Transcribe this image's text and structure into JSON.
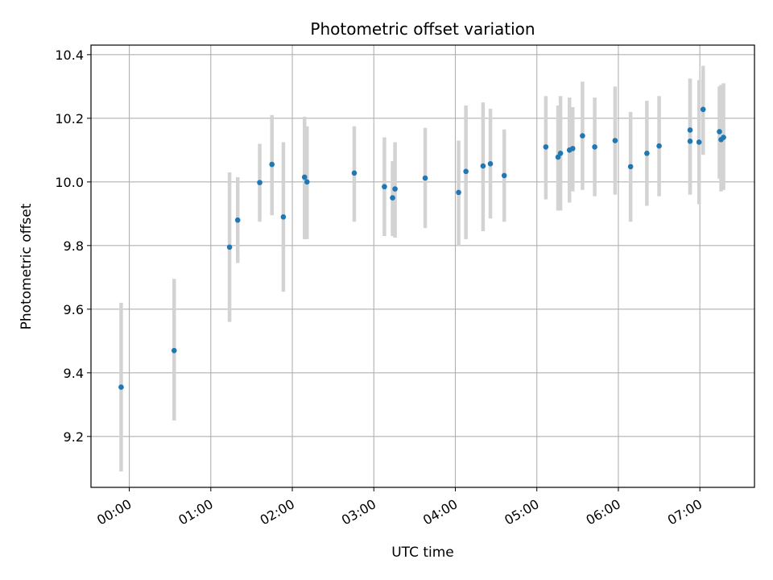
{
  "chart_data": {
    "type": "scatter",
    "title": "Photometric offset variation",
    "xlabel": "UTC time",
    "ylabel": "Photometric offset",
    "x_unit": "hours",
    "xlim": [
      -0.47,
      7.67
    ],
    "ylim": [
      9.04,
      10.43
    ],
    "grid": true,
    "x_ticks": [
      {
        "value": 0,
        "label": "00:00"
      },
      {
        "value": 1,
        "label": "01:00"
      },
      {
        "value": 2,
        "label": "02:00"
      },
      {
        "value": 3,
        "label": "03:00"
      },
      {
        "value": 4,
        "label": "04:00"
      },
      {
        "value": 5,
        "label": "05:00"
      },
      {
        "value": 6,
        "label": "06:00"
      },
      {
        "value": 7,
        "label": "07:00"
      }
    ],
    "y_ticks": [
      {
        "value": 9.2,
        "label": "9.2"
      },
      {
        "value": 9.4,
        "label": "9.4"
      },
      {
        "value": 9.6,
        "label": "9.6"
      },
      {
        "value": 9.8,
        "label": "9.8"
      },
      {
        "value": 10.0,
        "label": "10.0"
      },
      {
        "value": 10.2,
        "label": "10.2"
      },
      {
        "value": 10.4,
        "label": "10.4"
      }
    ],
    "point_color": "#1f77b4",
    "errorbar_color": "#d3d3d3",
    "points": [
      {
        "x": -0.1,
        "y": 9.355,
        "lo": 9.09,
        "hi": 9.62
      },
      {
        "x": 0.55,
        "y": 9.47,
        "lo": 9.25,
        "hi": 9.695
      },
      {
        "x": 1.23,
        "y": 9.795,
        "lo": 9.56,
        "hi": 10.03
      },
      {
        "x": 1.33,
        "y": 9.88,
        "lo": 9.745,
        "hi": 10.015
      },
      {
        "x": 1.6,
        "y": 9.998,
        "lo": 9.875,
        "hi": 10.12
      },
      {
        "x": 1.75,
        "y": 10.055,
        "lo": 9.895,
        "hi": 10.21
      },
      {
        "x": 1.89,
        "y": 9.89,
        "lo": 9.655,
        "hi": 10.125
      },
      {
        "x": 2.15,
        "y": 10.015,
        "lo": 9.82,
        "hi": 10.205
      },
      {
        "x": 2.18,
        "y": 10.0,
        "lo": 9.82,
        "hi": 10.175
      },
      {
        "x": 2.76,
        "y": 10.028,
        "lo": 9.875,
        "hi": 10.175
      },
      {
        "x": 3.13,
        "y": 9.985,
        "lo": 9.83,
        "hi": 10.14
      },
      {
        "x": 3.23,
        "y": 9.95,
        "lo": 9.83,
        "hi": 10.065
      },
      {
        "x": 3.26,
        "y": 9.978,
        "lo": 9.825,
        "hi": 10.125
      },
      {
        "x": 3.63,
        "y": 10.012,
        "lo": 9.855,
        "hi": 10.17
      },
      {
        "x": 4.04,
        "y": 9.967,
        "lo": 9.8,
        "hi": 10.13
      },
      {
        "x": 4.13,
        "y": 10.033,
        "lo": 9.82,
        "hi": 10.24
      },
      {
        "x": 4.34,
        "y": 10.05,
        "lo": 9.845,
        "hi": 10.25
      },
      {
        "x": 4.43,
        "y": 10.057,
        "lo": 9.885,
        "hi": 10.23
      },
      {
        "x": 4.6,
        "y": 10.02,
        "lo": 9.875,
        "hi": 10.165
      },
      {
        "x": 5.11,
        "y": 10.11,
        "lo": 9.945,
        "hi": 10.27
      },
      {
        "x": 5.26,
        "y": 10.078,
        "lo": 9.91,
        "hi": 10.24
      },
      {
        "x": 5.29,
        "y": 10.09,
        "lo": 9.91,
        "hi": 10.27
      },
      {
        "x": 5.4,
        "y": 10.1,
        "lo": 9.935,
        "hi": 10.265
      },
      {
        "x": 5.44,
        "y": 10.105,
        "lo": 9.97,
        "hi": 10.235
      },
      {
        "x": 5.56,
        "y": 10.145,
        "lo": 9.975,
        "hi": 10.315
      },
      {
        "x": 5.71,
        "y": 10.11,
        "lo": 9.955,
        "hi": 10.265
      },
      {
        "x": 5.96,
        "y": 10.13,
        "lo": 9.96,
        "hi": 10.3
      },
      {
        "x": 6.15,
        "y": 10.048,
        "lo": 9.875,
        "hi": 10.22
      },
      {
        "x": 6.35,
        "y": 10.09,
        "lo": 9.925,
        "hi": 10.255
      },
      {
        "x": 6.5,
        "y": 10.113,
        "lo": 9.955,
        "hi": 10.27
      },
      {
        "x": 6.88,
        "y": 10.163,
        "lo": 9.96,
        "hi": 10.325
      },
      {
        "x": 6.88,
        "y": 10.128,
        "lo": 9.96,
        "hi": 10.325
      },
      {
        "x": 6.99,
        "y": 10.125,
        "lo": 9.93,
        "hi": 10.32
      },
      {
        "x": 7.04,
        "y": 10.228,
        "lo": 10.085,
        "hi": 10.365
      },
      {
        "x": 7.24,
        "y": 10.158,
        "lo": 10.01,
        "hi": 10.3
      },
      {
        "x": 7.26,
        "y": 10.133,
        "lo": 9.97,
        "hi": 10.305
      },
      {
        "x": 7.29,
        "y": 10.14,
        "lo": 9.975,
        "hi": 10.31
      }
    ]
  }
}
